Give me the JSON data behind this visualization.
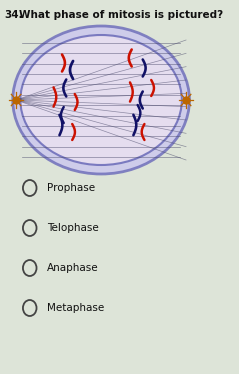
{
  "question_num": "34.",
  "question_text": "What phase of mitosis is pictured?",
  "options": [
    "Prophase",
    "Telophase",
    "Anaphase",
    "Metaphase"
  ],
  "bg_color": "#dde4d8",
  "cell_fill": "#e8e0f0",
  "cell_outer_fill": "#d0ccee",
  "cell_edge": "#7070bb",
  "spindle_color": "#444466",
  "chrom_red": "#cc1100",
  "chrom_blue": "#111166",
  "centrosome_color": "#bb6600",
  "title_fontsize": 7.5,
  "option_fontsize": 7.5
}
